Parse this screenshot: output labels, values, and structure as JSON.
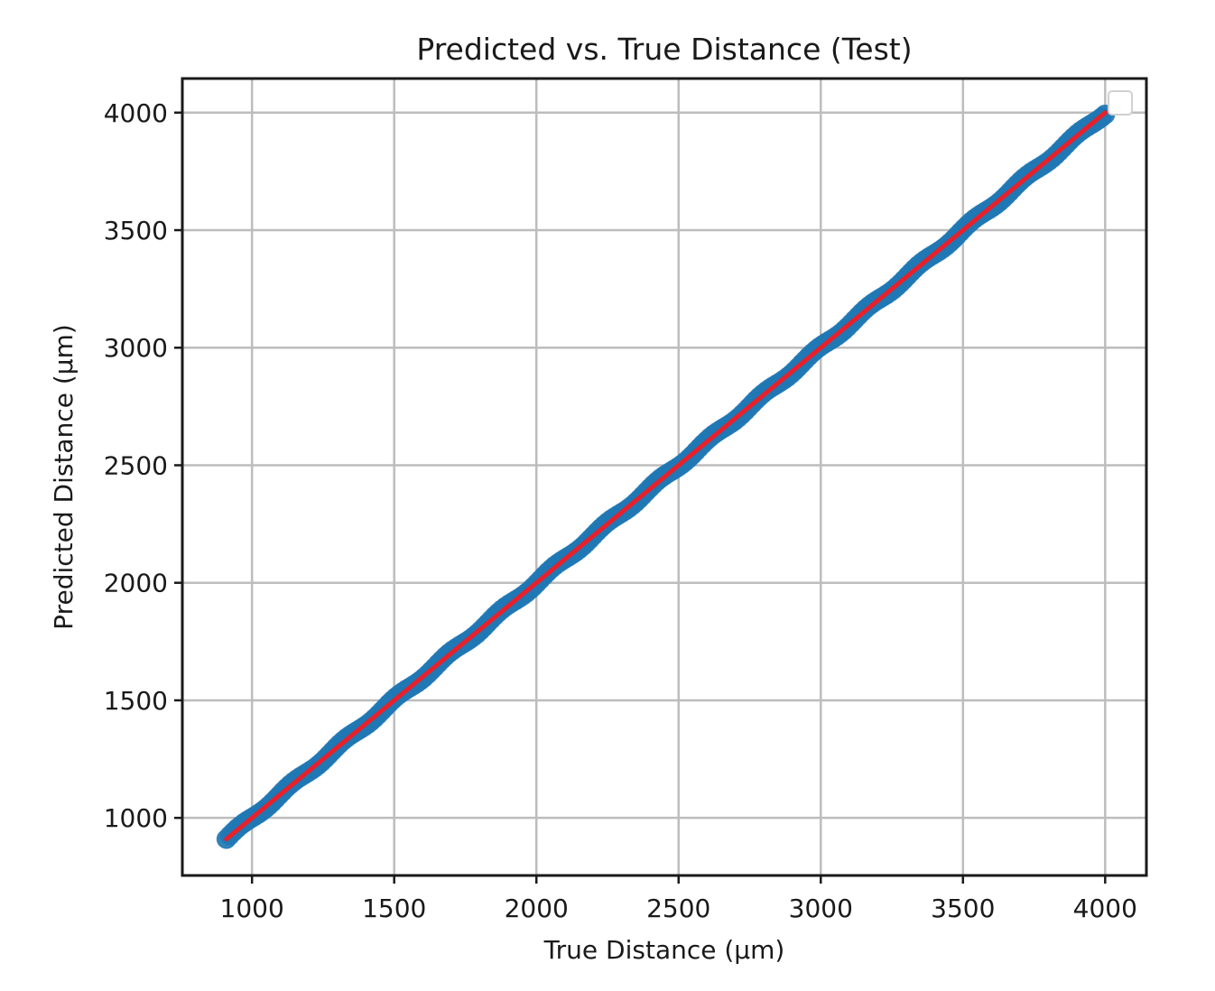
{
  "chart_data": {
    "type": "scatter",
    "title": "Predicted vs. True Distance (Test)",
    "xlabel": "True Distance (µm)",
    "ylabel": "Predicted Distance (µm)",
    "xlim": [
      755,
      4145
    ],
    "ylim": [
      755,
      4145
    ],
    "xticks": [
      1000,
      1500,
      2000,
      2500,
      3000,
      3500,
      4000
    ],
    "yticks": [
      1000,
      1500,
      2000,
      2500,
      3000,
      3500,
      4000
    ],
    "grid": true,
    "legend_placement": "top-right",
    "series": [
      {
        "kind": "scatter",
        "color": "#1f77b4",
        "x_range": [
          910,
          4000
        ],
        "count": 250,
        "relation": "y ≈ x"
      },
      {
        "kind": "line",
        "color": "#e8202a",
        "x": [
          910,
          4000
        ],
        "y": [
          910,
          4000
        ]
      }
    ]
  }
}
